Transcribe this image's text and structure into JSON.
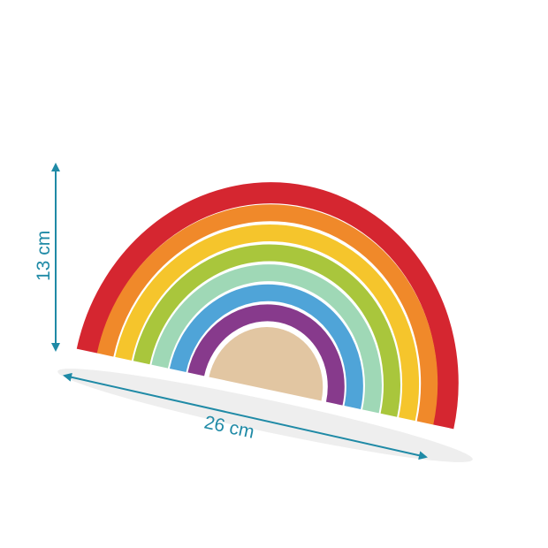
{
  "dimensions": {
    "height_label": "13 cm",
    "width_label": "26 cm",
    "color": "#1f8aa6"
  },
  "product": {
    "arch_colors": [
      "#d52630",
      "#f0892a",
      "#f5c52c",
      "#a9c63c",
      "#9fd8b6",
      "#4fa4d8",
      "#873a8c"
    ],
    "core_color": "#e2c6a2"
  }
}
